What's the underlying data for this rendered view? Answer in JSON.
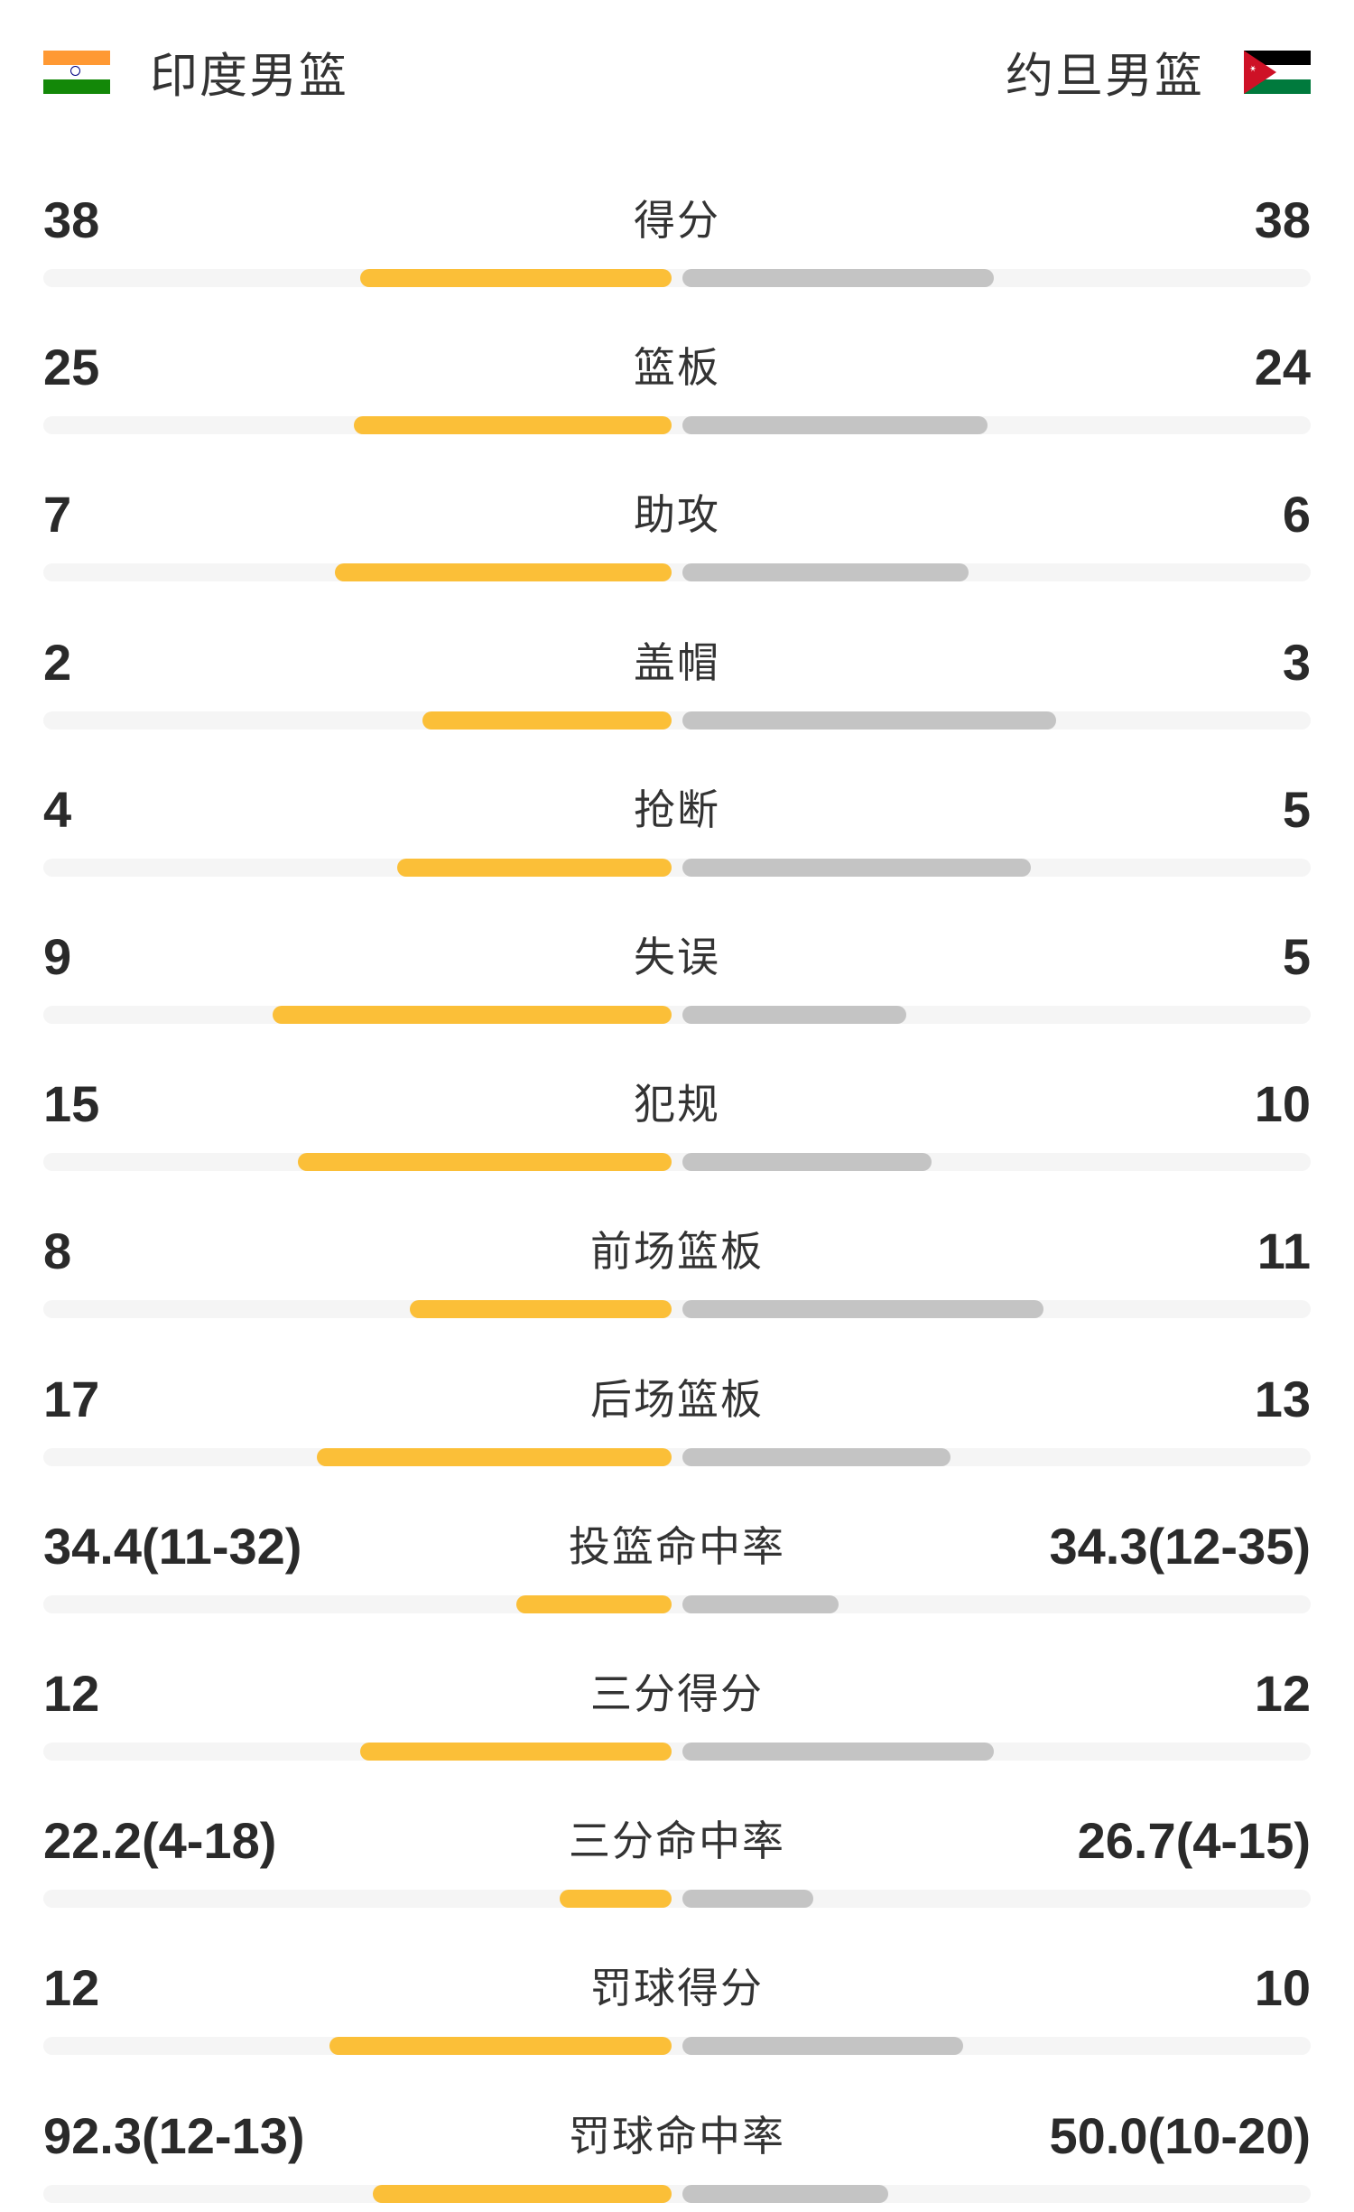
{
  "header": {
    "home_team": "印度男篮",
    "away_team": "约旦男篮",
    "home_flag_icon": "india-flag-icon",
    "away_flag_icon": "jordan-flag-icon"
  },
  "colors": {
    "home_bar": "#fbbf38",
    "away_bar": "#c4c4c4",
    "track": "#f5f5f5"
  },
  "stats": [
    {
      "label": "得分",
      "home": "38",
      "away": "38",
      "home_fill": 0.5,
      "away_fill": 0.5
    },
    {
      "label": "篮板",
      "home": "25",
      "away": "24",
      "home_fill": 0.51,
      "away_fill": 0.49
    },
    {
      "label": "助攻",
      "home": "7",
      "away": "6",
      "home_fill": 0.54,
      "away_fill": 0.46
    },
    {
      "label": "盖帽",
      "home": "2",
      "away": "3",
      "home_fill": 0.4,
      "away_fill": 0.6
    },
    {
      "label": "抢断",
      "home": "4",
      "away": "5",
      "home_fill": 0.44,
      "away_fill": 0.56
    },
    {
      "label": "失误",
      "home": "9",
      "away": "5",
      "home_fill": 0.64,
      "away_fill": 0.36
    },
    {
      "label": "犯规",
      "home": "15",
      "away": "10",
      "home_fill": 0.6,
      "away_fill": 0.4
    },
    {
      "label": "前场篮板",
      "home": "8",
      "away": "11",
      "home_fill": 0.42,
      "away_fill": 0.58
    },
    {
      "label": "后场篮板",
      "home": "17",
      "away": "13",
      "home_fill": 0.57,
      "away_fill": 0.43
    },
    {
      "label": "投篮命中率",
      "home": "34.4(11-32)",
      "away": "34.3(12-35)",
      "home_fill": 0.25,
      "away_fill": 0.25
    },
    {
      "label": "三分得分",
      "home": "12",
      "away": "12",
      "home_fill": 0.5,
      "away_fill": 0.5
    },
    {
      "label": "三分命中率",
      "home": "22.2(4-18)",
      "away": "26.7(4-15)",
      "home_fill": 0.18,
      "away_fill": 0.21
    },
    {
      "label": "罚球得分",
      "home": "12",
      "away": "10",
      "home_fill": 0.55,
      "away_fill": 0.45
    },
    {
      "label": "罚球命中率",
      "home": "92.3(12-13)",
      "away": "50.0(10-20)",
      "home_fill": 0.48,
      "away_fill": 0.33
    }
  ]
}
